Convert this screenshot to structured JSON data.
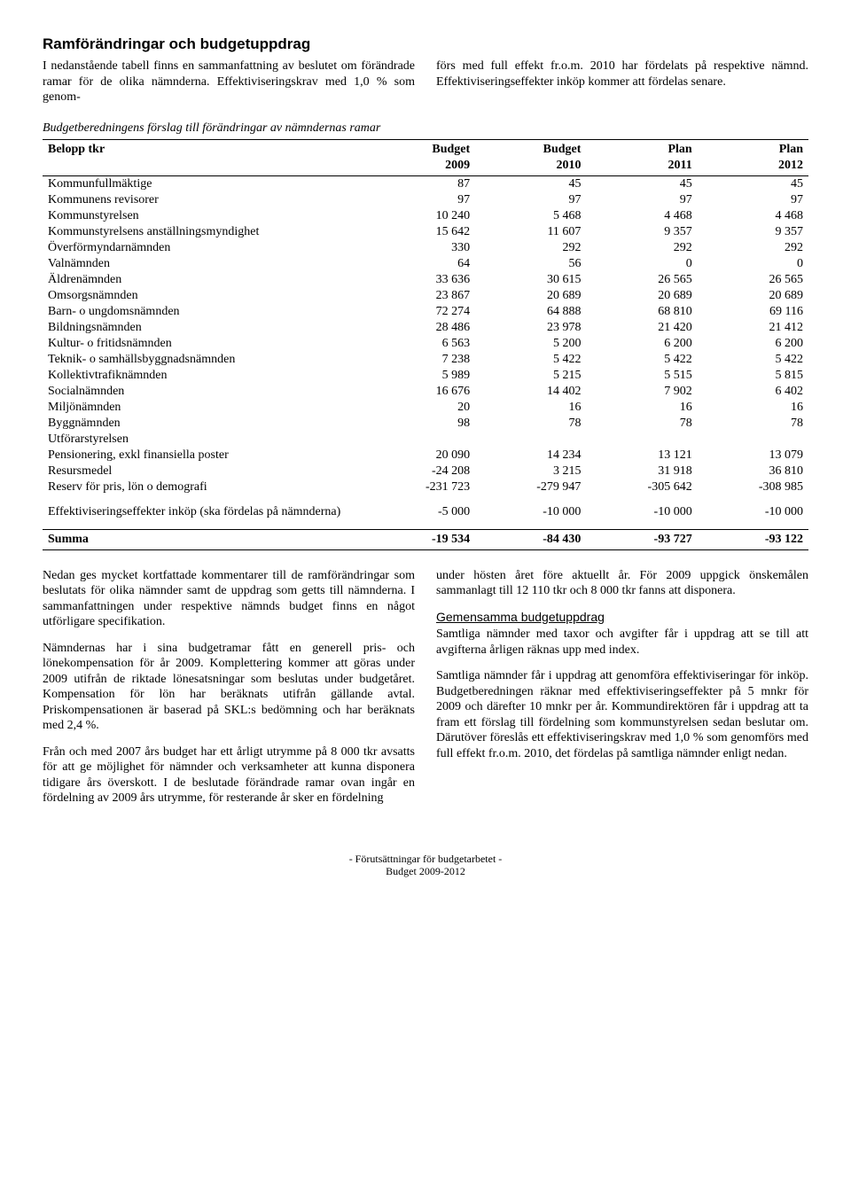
{
  "title": "Ramförändringar och budgetuppdrag",
  "intro": {
    "left": "I nedanstående tabell finns en sammanfattning av beslutet om förändrade ramar för de olika nämnderna. Effektiviseringskrav med 1,0 % som genom-",
    "right": "förs med full effekt fr.o.m. 2010 har fördelats på respektive nämnd. Effektiviseringseffekter inköp kommer att fördelas senare."
  },
  "table": {
    "caption": "Budgetberedningens förslag till förändringar av nämndernas ramar",
    "header1": [
      "Belopp tkr",
      "Budget",
      "Budget",
      "Plan",
      "Plan"
    ],
    "header2": [
      "",
      "2009",
      "2010",
      "2011",
      "2012"
    ],
    "rows": [
      [
        "Kommunfullmäktige",
        "87",
        "45",
        "45",
        "45"
      ],
      [
        "Kommunens revisorer",
        "97",
        "97",
        "97",
        "97"
      ],
      [
        "Kommunstyrelsen",
        "10 240",
        "5 468",
        "4 468",
        "4 468"
      ],
      [
        "Kommunstyrelsens anställningsmyndighet",
        "15 642",
        "11 607",
        "9 357",
        "9 357"
      ],
      [
        "Överförmyndarnämnden",
        "330",
        "292",
        "292",
        "292"
      ],
      [
        "Valnämnden",
        "64",
        "56",
        "0",
        "0"
      ],
      [
        "Äldrenämnden",
        "33 636",
        "30 615",
        "26 565",
        "26 565"
      ],
      [
        "Omsorgsnämnden",
        "23 867",
        "20 689",
        "20 689",
        "20 689"
      ],
      [
        "Barn- o ungdomsnämnden",
        "72 274",
        "64 888",
        "68 810",
        "69 116"
      ],
      [
        "Bildningsnämnden",
        "28 486",
        "23 978",
        "21 420",
        "21 412"
      ],
      [
        "Kultur- o fritidsnämnden",
        "6 563",
        "5 200",
        "6 200",
        "6 200"
      ],
      [
        "Teknik- o samhällsbyggnadsnämnden",
        "7 238",
        "5 422",
        "5 422",
        "5 422"
      ],
      [
        "Kollektivtrafiknämnden",
        "5 989",
        "5 215",
        "5 515",
        "5 815"
      ],
      [
        "Socialnämnden",
        "16 676",
        "14 402",
        "7 902",
        "6 402"
      ],
      [
        "Miljönämnden",
        "20",
        "16",
        "16",
        "16"
      ],
      [
        "Byggnämnden",
        "98",
        "78",
        "78",
        "78"
      ],
      [
        "Utförarstyrelsen",
        "",
        "",
        "",
        ""
      ],
      [
        "Pensionering, exkl finansiella poster",
        "20 090",
        "14 234",
        "13 121",
        "13 079"
      ],
      [
        "Resursmedel",
        "-24 208",
        "3 215",
        "31 918",
        "36 810"
      ],
      [
        "Reserv för pris, lön o demografi",
        "-231 723",
        "-279 947",
        "-305 642",
        "-308 985"
      ]
    ],
    "eff_row": [
      "Effektiviseringseffekter inköp (ska fördelas på nämnderna)",
      "-5 000",
      "-10 000",
      "-10 000",
      "-10 000"
    ],
    "sum_row": [
      "Summa",
      "-19 534",
      "-84 430",
      "-93 727",
      "-93 122"
    ]
  },
  "post": {
    "left": [
      "Nedan ges mycket kortfattade kommentarer till de ramförändringar som beslutats för olika nämnder samt de uppdrag som getts till nämnderna. I sammanfattningen under respektive nämnds budget finns en något utförligare specifikation.",
      "Nämndernas har i sina budgetramar fått en generell pris- och lönekompensation för år 2009. Komplettering kommer att göras under 2009 utifrån de riktade lönesatsningar som beslutas under budgetåret. Kompensation för lön har beräknats utifrån gällande avtal. Priskompensationen är baserad på SKL:s bedömning och har beräknats med 2,4 %.",
      "Från och med 2007 års budget har ett årligt utrymme på 8 000 tkr avsatts för att ge möjlighet för nämnder och verksamheter att kunna disponera tidigare års överskott. I de beslutade förändrade ramar ovan ingår en fördelning av 2009 års utrymme, för resterande år sker en fördelning"
    ],
    "right_p1": "under hösten året före aktuellt år. För 2009 uppgick önskemålen sammanlagt till 12 110 tkr och 8 000 tkr fanns att disponera.",
    "right_head": "Gemensamma budgetuppdrag",
    "right_p2": "Samtliga nämnder med taxor och avgifter får i uppdrag att se till att avgifterna årligen räknas upp med index.",
    "right_p3": "Samtliga nämnder får i uppdrag att genomföra effektiviseringar för inköp. Budgetberedningen räknar med effektiviseringseffekter på 5 mnkr för 2009 och därefter 10 mnkr per år. Kommundirektören får i uppdrag att ta fram ett förslag till fördelning som kommunstyrelsen sedan beslutar om. Därutöver föreslås ett effektiviseringskrav med 1,0 % som genomförs med full effekt fr.o.m. 2010, det fördelas på samtliga nämnder enligt nedan."
  },
  "footer": {
    "line1": "- Förutsättningar för budgetarbetet -",
    "line2": "Budget 2009-2012"
  }
}
